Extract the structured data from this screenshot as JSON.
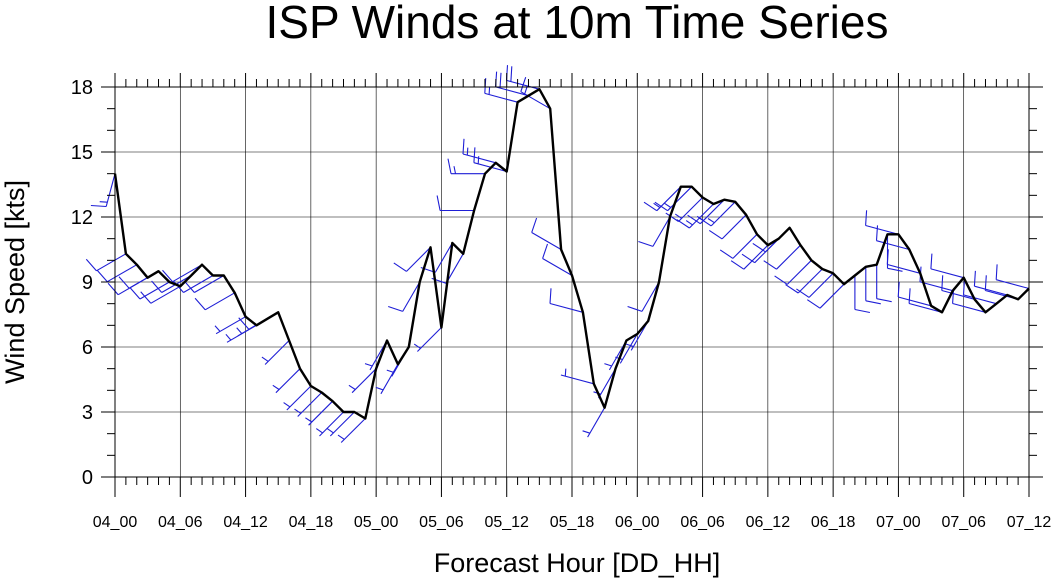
{
  "chart_data": {
    "type": "line",
    "title": "ISP Winds at 10m Time Series",
    "xlabel": "Forecast Hour [DD_HH]",
    "ylabel": "Wind Speed [kts]",
    "ylim": [
      0,
      18
    ],
    "xlim": [
      0,
      84
    ],
    "grid": true,
    "yticks": [
      "0",
      "3",
      "6",
      "9",
      "12",
      "15",
      "18"
    ],
    "xticks": [
      {
        "hour": 0,
        "label": "04_00"
      },
      {
        "hour": 6,
        "label": "04_06"
      },
      {
        "hour": 12,
        "label": "04_12"
      },
      {
        "hour": 18,
        "label": "04_18"
      },
      {
        "hour": 24,
        "label": "05_00"
      },
      {
        "hour": 30,
        "label": "05_06"
      },
      {
        "hour": 36,
        "label": "05_12"
      },
      {
        "hour": 42,
        "label": "05_18"
      },
      {
        "hour": 48,
        "label": "06_00"
      },
      {
        "hour": 54,
        "label": "06_06"
      },
      {
        "hour": 60,
        "label": "06_12"
      },
      {
        "hour": 66,
        "label": "06_18"
      },
      {
        "hour": 72,
        "label": "07_00"
      },
      {
        "hour": 78,
        "label": "07_06"
      },
      {
        "hour": 84,
        "label": "07_12"
      }
    ],
    "colors": {
      "line": "#000000",
      "barbs": "#1f1fd6",
      "grid": "#000000"
    },
    "series": [
      {
        "x": [
          0,
          1,
          2,
          3,
          4,
          5,
          6,
          7,
          8,
          9,
          10,
          11,
          12,
          13,
          14,
          15,
          16,
          17,
          18,
          19,
          20,
          21,
          22,
          23,
          24,
          25,
          26,
          27,
          28,
          29,
          30,
          31,
          32,
          33,
          34,
          35,
          36,
          37,
          38,
          39,
          40,
          41,
          42,
          43,
          44,
          45,
          46,
          47,
          48,
          49,
          50,
          51,
          52,
          53,
          54,
          55,
          56,
          57,
          58,
          59,
          60,
          61,
          62,
          63,
          64,
          65,
          66,
          67,
          68,
          69,
          70,
          71,
          72,
          73,
          74,
          75,
          76,
          77,
          78,
          79,
          80,
          81,
          82,
          83,
          84
        ],
        "values": [
          14.0,
          10.3,
          9.8,
          9.2,
          9.5,
          9.0,
          8.8,
          9.3,
          9.8,
          9.3,
          9.3,
          8.5,
          7.4,
          7.0,
          7.3,
          7.6,
          6.3,
          5.0,
          4.2,
          3.9,
          3.5,
          3.0,
          3.0,
          2.7,
          5.0,
          6.3,
          5.2,
          6.0,
          9.0,
          10.6,
          6.9,
          10.8,
          10.3,
          12.3,
          14.0,
          14.5,
          14.1,
          17.3,
          17.6,
          17.9,
          17.0,
          10.5,
          9.3,
          7.6,
          4.3,
          3.2,
          5.0,
          6.3,
          6.6,
          7.2,
          9.0,
          12.0,
          13.4,
          13.4,
          12.9,
          12.6,
          12.8,
          12.7,
          12.1,
          11.2,
          10.7,
          11.0,
          11.5,
          10.7,
          10.0,
          9.6,
          9.4,
          8.9,
          9.3,
          9.7,
          9.8,
          11.2,
          11.2,
          10.5,
          9.4,
          7.9,
          7.6,
          8.6,
          9.2,
          8.2,
          7.6,
          8.0,
          8.4,
          8.2,
          8.7
        ]
      }
    ],
    "barb_directions_deg": [
      195,
      240,
      240,
      240,
      240,
      240,
      240,
      240,
      240,
      240,
      240,
      240,
      240,
      240,
      240,
      240,
      225,
      225,
      225,
      225,
      225,
      225,
      225,
      225,
      225,
      210,
      210,
      210,
      210,
      225,
      225,
      210,
      210,
      270,
      270,
      285,
      285,
      285,
      285,
      285,
      300,
      300,
      300,
      285,
      285,
      210,
      210,
      210,
      210,
      210,
      210,
      210,
      225,
      225,
      225,
      225,
      225,
      225,
      225,
      225,
      225,
      225,
      225,
      225,
      225,
      225,
      225,
      225,
      180,
      180,
      180,
      180,
      285,
      285,
      285,
      285,
      285,
      285,
      285,
      285,
      285,
      285,
      285,
      285,
      285
    ]
  }
}
